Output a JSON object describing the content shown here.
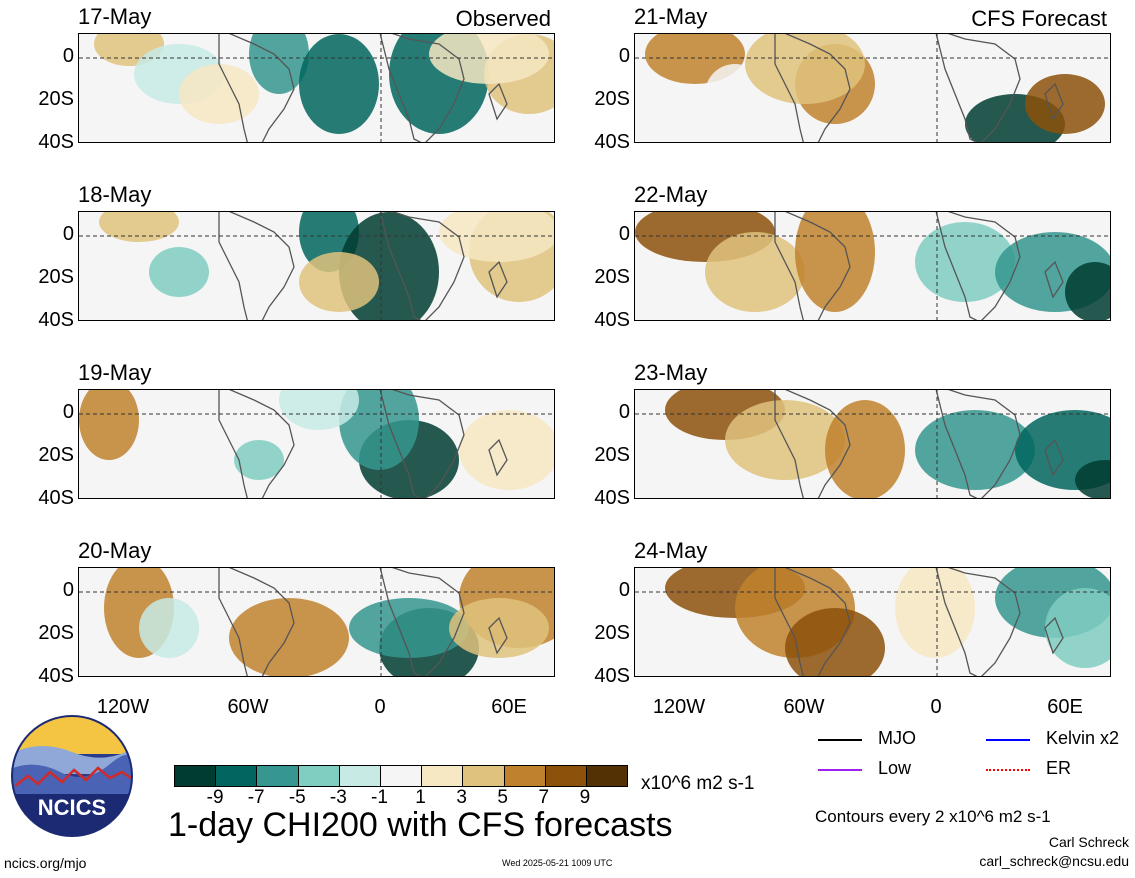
{
  "panels": [
    {
      "date": "17-May",
      "corner_label": "Observed",
      "col": 0,
      "row": 0
    },
    {
      "date": "18-May",
      "corner_label": "",
      "col": 0,
      "row": 1
    },
    {
      "date": "19-May",
      "corner_label": "",
      "col": 0,
      "row": 2
    },
    {
      "date": "20-May",
      "corner_label": "",
      "col": 0,
      "row": 3
    },
    {
      "date": "21-May",
      "corner_label": "CFS Forecast",
      "col": 1,
      "row": 0
    },
    {
      "date": "22-May",
      "corner_label": "",
      "col": 1,
      "row": 1
    },
    {
      "date": "23-May",
      "corner_label": "",
      "col": 1,
      "row": 2
    },
    {
      "date": "24-May",
      "corner_label": "",
      "col": 1,
      "row": 3
    }
  ],
  "y_ticks": [
    "0",
    "20S",
    "40S"
  ],
  "x_ticks": [
    "120W",
    "60W",
    "0",
    "60E"
  ],
  "colorbar": {
    "colors": [
      "#003c30",
      "#01665e",
      "#35978f",
      "#80cdc1",
      "#c7eae5",
      "#f5f5f5",
      "#f6e8c3",
      "#dfc27d",
      "#bf812d",
      "#8c510a",
      "#543005"
    ],
    "tick_labels": [
      "-9",
      "-7",
      "-5",
      "-3",
      "-1",
      "1",
      "3",
      "5",
      "7",
      "9"
    ],
    "units": "x10^6 m2 s-1"
  },
  "title": "1-day CHI200 with CFS forecasts",
  "legend": [
    {
      "label": "MJO",
      "color": "#000000"
    },
    {
      "label": "Kelvin x2",
      "color": "#0000ff"
    },
    {
      "label": "Low",
      "color": "#a020f0"
    },
    {
      "label": "ER",
      "color": "#ff0000"
    }
  ],
  "contour_note": "Contours every 2 x10^6 m2 s-1",
  "author": "Carl Schreck",
  "email": "carl_schreck@ncsu.edu",
  "site": "ncics.org/mjo",
  "timestamp": "Wed 2025-05-21 1009 UTC",
  "logo_text": "NCICS"
}
